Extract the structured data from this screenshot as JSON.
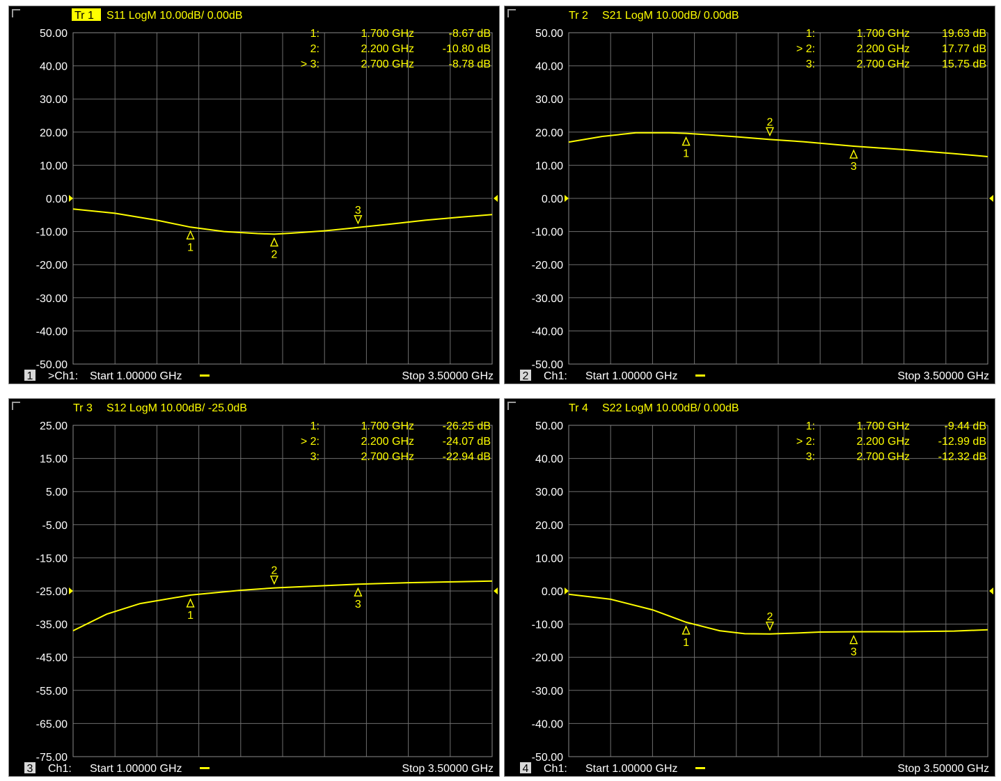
{
  "colors": {
    "background": "#000000",
    "grid": "#6e6e6e",
    "trace": "#ffff00",
    "text": "#ffff00",
    "frame": "#8c8c8c",
    "label_text": "#ffffff"
  },
  "chart_data": [
    {
      "type": "line",
      "trace_label": "Tr 1",
      "title": "S11 LogM 10.00dB/ 0.00dB",
      "trace_active": true,
      "ylim": [
        -50,
        50
      ],
      "ylabels": [
        "50.00",
        "40.00",
        "30.00",
        "20.00",
        "10.00",
        "0.00",
        "-10.00",
        "-20.00",
        "-30.00",
        "-40.00",
        "-50.00"
      ],
      "xlim": [
        1.0,
        3.5
      ],
      "ref_value": 0,
      "x": [
        1.0,
        1.25,
        1.5,
        1.7,
        1.9,
        2.1,
        2.2,
        2.3,
        2.5,
        2.7,
        2.9,
        3.1,
        3.3,
        3.5
      ],
      "y": [
        -3.2,
        -4.5,
        -6.6,
        -8.67,
        -10.0,
        -10.6,
        -10.8,
        -10.5,
        -9.8,
        -8.78,
        -7.7,
        -6.6,
        -5.7,
        -4.9
      ],
      "markers": [
        {
          "id": "1",
          "x": 1.7,
          "y": -8.67,
          "dir": "up",
          "readout": "1:",
          "freq": "1.700 GHz",
          "value": "-8.67 dB"
        },
        {
          "id": "2",
          "x": 2.2,
          "y": -10.8,
          "dir": "up",
          "readout": "2:",
          "freq": "2.200 GHz",
          "value": "-10.80 dB"
        },
        {
          "id": "3",
          "x": 2.7,
          "y": -8.78,
          "dir": "down",
          "readout": "> 3:",
          "freq": "2.700 GHz",
          "value": "-8.78 dB"
        }
      ],
      "channel_number": "1",
      "channel": ">Ch1:",
      "start": "Start  1.00000 GHz",
      "stop": "Stop  3.50000 GHz"
    },
    {
      "type": "line",
      "trace_label": "Tr  2",
      "title": "S21 LogM 10.00dB/ 0.00dB",
      "trace_active": false,
      "ylim": [
        -50,
        50
      ],
      "ylabels": [
        "50.00",
        "40.00",
        "30.00",
        "20.00",
        "10.00",
        "0.00",
        "-10.00",
        "-20.00",
        "-30.00",
        "-40.00",
        "-50.00"
      ],
      "xlim": [
        1.0,
        3.5
      ],
      "ref_value": 0,
      "x": [
        1.0,
        1.2,
        1.4,
        1.6,
        1.7,
        1.8,
        2.0,
        2.2,
        2.4,
        2.7,
        3.0,
        3.3,
        3.5
      ],
      "y": [
        17.0,
        18.7,
        19.8,
        19.8,
        19.63,
        19.3,
        18.6,
        17.77,
        17.1,
        15.75,
        14.7,
        13.5,
        12.6
      ],
      "markers": [
        {
          "id": "1",
          "x": 1.7,
          "y": 19.63,
          "dir": "up",
          "readout": "1:",
          "freq": "1.700 GHz",
          "value": "19.63 dB"
        },
        {
          "id": "2",
          "x": 2.2,
          "y": 17.77,
          "dir": "down",
          "readout": "> 2:",
          "freq": "2.200 GHz",
          "value": "17.77 dB"
        },
        {
          "id": "3",
          "x": 2.7,
          "y": 15.75,
          "dir": "up",
          "readout": "3:",
          "freq": "2.700 GHz",
          "value": "15.75 dB"
        }
      ],
      "channel_number": "2",
      "channel": "Ch1:",
      "start": "Start  1.00000 GHz",
      "stop": "Stop  3.50000 GHz"
    },
    {
      "type": "line",
      "trace_label": "Tr  3",
      "title": "S12 LogM 10.00dB/  -25.0dB",
      "trace_active": false,
      "ylim": [
        -75,
        25
      ],
      "ylabels": [
        "25.00",
        "15.00",
        "5.00",
        "-5.00",
        "-15.00",
        "-25.00",
        "-35.00",
        "-45.00",
        "-55.00",
        "-65.00",
        "-75.00"
      ],
      "xlim": [
        1.0,
        3.5
      ],
      "ref_value": -25,
      "x": [
        1.0,
        1.2,
        1.4,
        1.7,
        2.0,
        2.2,
        2.5,
        2.7,
        3.0,
        3.3,
        3.5
      ],
      "y": [
        -37.0,
        -32.0,
        -28.8,
        -26.25,
        -24.8,
        -24.07,
        -23.4,
        -22.94,
        -22.5,
        -22.2,
        -22.0
      ],
      "markers": [
        {
          "id": "1",
          "x": 1.7,
          "y": -26.25,
          "dir": "up",
          "readout": "1:",
          "freq": "1.700 GHz",
          "value": "-26.25 dB"
        },
        {
          "id": "2",
          "x": 2.2,
          "y": -24.07,
          "dir": "down",
          "readout": "> 2:",
          "freq": "2.200 GHz",
          "value": "-24.07 dB"
        },
        {
          "id": "3",
          "x": 2.7,
          "y": -22.94,
          "dir": "up",
          "readout": "3:",
          "freq": "2.700 GHz",
          "value": "-22.94 dB"
        }
      ],
      "channel_number": "3",
      "channel": "Ch1:",
      "start": "Start  1.00000 GHz",
      "stop": "Stop  3.50000 GHz"
    },
    {
      "type": "line",
      "trace_label": "Tr  4",
      "title": "S22 LogM 10.00dB/ 0.00dB",
      "trace_active": false,
      "ylim": [
        -50,
        50
      ],
      "ylabels": [
        "50.00",
        "40.00",
        "30.00",
        "20.00",
        "10.00",
        "0.00",
        "-10.00",
        "-20.00",
        "-30.00",
        "-40.00",
        "-50.00"
      ],
      "xlim": [
        1.0,
        3.5
      ],
      "ref_value": 0,
      "x": [
        1.0,
        1.25,
        1.5,
        1.7,
        1.9,
        2.05,
        2.2,
        2.35,
        2.5,
        2.7,
        3.0,
        3.3,
        3.5
      ],
      "y": [
        -1.0,
        -2.5,
        -5.7,
        -9.44,
        -12.0,
        -12.9,
        -12.99,
        -12.7,
        -12.4,
        -12.32,
        -12.3,
        -12.1,
        -11.7
      ],
      "markers": [
        {
          "id": "1",
          "x": 1.7,
          "y": -9.44,
          "dir": "up",
          "readout": "1:",
          "freq": "1.700 GHz",
          "value": "-9.44 dB"
        },
        {
          "id": "2",
          "x": 2.2,
          "y": -12.99,
          "dir": "down",
          "readout": "> 2:",
          "freq": "2.200 GHz",
          "value": "-12.99 dB"
        },
        {
          "id": "3",
          "x": 2.7,
          "y": -12.32,
          "dir": "up",
          "readout": "3:",
          "freq": "2.700 GHz",
          "value": "-12.32 dB"
        }
      ],
      "channel_number": "4",
      "channel": "Ch1:",
      "start": "Start  1.00000 GHz",
      "stop": "Stop  3.50000 GHz"
    }
  ]
}
